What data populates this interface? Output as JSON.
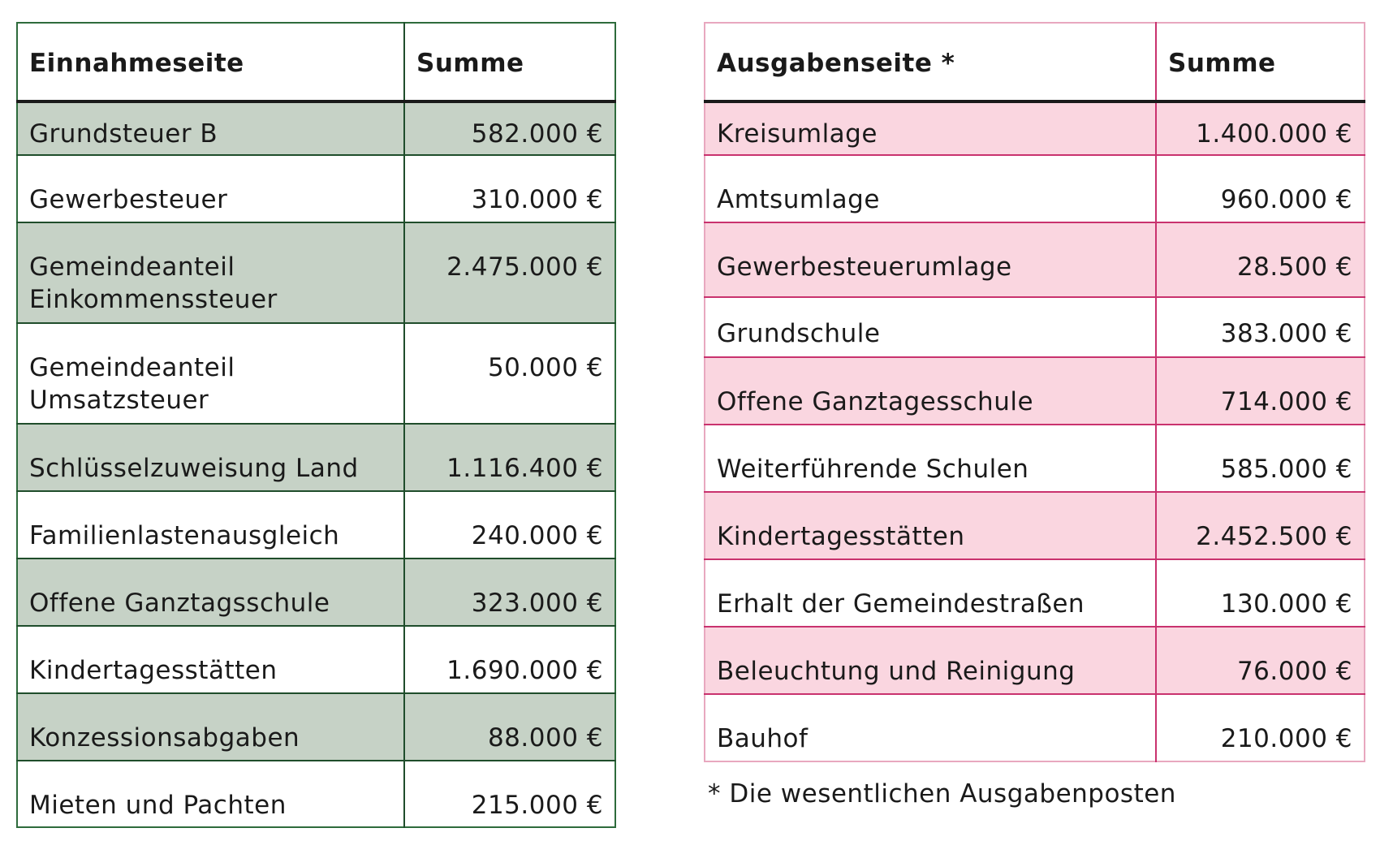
{
  "colors": {
    "income_shade": "#c6d2c6",
    "income_border": "#1f4d2b",
    "expense_shade": "#fad6e0",
    "expense_border": "#c9326e"
  },
  "income": {
    "header_label": "Einnahmeseite",
    "header_sum": "Summe",
    "rows": [
      {
        "label": "Grundsteuer B",
        "amount": "582.000 €"
      },
      {
        "label": "Gewerbesteuer",
        "amount": "310.000 €"
      },
      {
        "label": "Gemeindeanteil Einkommenssteuer",
        "amount": "2.475.000 €"
      },
      {
        "label": "Gemeindeanteil Umsatzsteuer",
        "amount": "50.000 €"
      },
      {
        "label": "Schlüsselzuweisung Land",
        "amount": "1.116.400 €"
      },
      {
        "label": "Familienlastenausgleich",
        "amount": "240.000 €"
      },
      {
        "label": "Offene Ganztagsschule",
        "amount": "323.000 €"
      },
      {
        "label": "Kindertagesstätten",
        "amount": "1.690.000 €"
      },
      {
        "label": "Konzessionsabgaben",
        "amount": "88.000 €"
      },
      {
        "label": "Mieten und Pachten",
        "amount": "215.000 €"
      }
    ]
  },
  "expense": {
    "header_label": "Ausgabenseite *",
    "header_sum": "Summe",
    "rows": [
      {
        "label": "Kreisumlage",
        "amount": "1.400.000 €"
      },
      {
        "label": "Amtsumlage",
        "amount": "960.000 €"
      },
      {
        "label": "Gewerbesteuerumlage",
        "amount": "28.500 €"
      },
      {
        "label": "Grundschule",
        "amount": "383.000 €"
      },
      {
        "label": "Offene Ganztagesschule",
        "amount": "714.000 €"
      },
      {
        "label": "Weiterführende Schulen",
        "amount": "585.000 €"
      },
      {
        "label": "Kindertagesstätten",
        "amount": "2.452.500 €"
      },
      {
        "label": "Erhalt der Gemeindestraßen",
        "amount": "130.000 €"
      },
      {
        "label": "Beleuchtung und Reinigung",
        "amount": "76.000 €"
      },
      {
        "label": "Bauhof",
        "amount": "210.000 €"
      }
    ]
  },
  "footnote": "* Die wesentlichen Ausgabenposten"
}
